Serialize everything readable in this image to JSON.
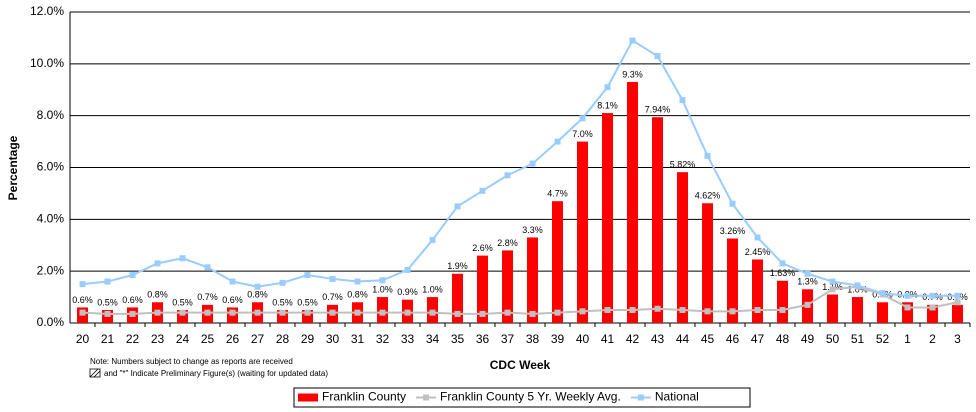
{
  "chart_data": {
    "type": "bar",
    "y_label": "Percentage",
    "x_label": "CDC Week",
    "notes": [
      "Note: Numbers subject to change as reports are received",
      "and \"*\" Indicate Preliminary Figure(s) (waiting for updated data)"
    ],
    "categories": [
      "20",
      "21",
      "22",
      "23",
      "24",
      "25",
      "26",
      "27",
      "28",
      "29",
      "30",
      "31",
      "32",
      "33",
      "34",
      "35",
      "36",
      "37",
      "38",
      "39",
      "40",
      "41",
      "42",
      "43",
      "44",
      "45",
      "46",
      "47",
      "48",
      "49",
      "50",
      "51",
      "52",
      "1",
      "2",
      "3"
    ],
    "series": [
      {
        "name": "Franklin County",
        "type": "bar",
        "color": "#ff0000",
        "values": [
          0.6,
          0.5,
          0.6,
          0.8,
          0.5,
          0.7,
          0.6,
          0.8,
          0.5,
          0.5,
          0.7,
          0.8,
          1.0,
          0.9,
          1.0,
          1.9,
          2.6,
          2.8,
          3.3,
          4.7,
          7.0,
          8.1,
          9.3,
          7.94,
          5.82,
          4.62,
          3.26,
          2.45,
          1.63,
          1.3,
          1.1,
          1.0,
          0.8,
          0.8,
          0.7,
          0.7
        ],
        "value_labels": [
          "0.6%",
          "0.5%",
          "0.6%",
          "0.8%",
          "0.5%",
          "0.7%",
          "0.6%",
          "0.8%",
          "0.5%",
          "0.5%",
          "0.7%",
          "0.8%",
          "1.0%",
          "0.9%",
          "1.0%",
          "1.9%",
          "2.6%",
          "2.8%",
          "3.3%",
          "4.7%",
          "7.0%",
          "8.1%",
          "9.3%",
          "7.94%",
          "5.82%",
          "4.62%",
          "3.26%",
          "2.45%",
          "1.63%",
          "1.3%",
          "1.1%",
          "1.0%",
          "0.8%",
          "0.8%",
          "0.7%",
          "0.7%"
        ]
      },
      {
        "name": "Franklin County 5 Yr. Weekly Avg.",
        "type": "line",
        "color": "#c0c0c0",
        "values": [
          0.4,
          0.35,
          0.35,
          0.4,
          0.4,
          0.4,
          0.4,
          0.4,
          0.4,
          0.4,
          0.4,
          0.4,
          0.4,
          0.4,
          0.4,
          0.35,
          0.35,
          0.4,
          0.35,
          0.4,
          0.45,
          0.5,
          0.5,
          0.55,
          0.5,
          0.45,
          0.45,
          0.5,
          0.5,
          0.7,
          1.3,
          1.4,
          1.1,
          0.6,
          0.6,
          0.8
        ]
      },
      {
        "name": "National",
        "type": "line",
        "color": "#99ccff",
        "values": [
          1.5,
          1.6,
          1.85,
          2.3,
          2.5,
          2.15,
          1.6,
          1.4,
          1.55,
          1.85,
          1.7,
          1.6,
          1.65,
          2.05,
          3.2,
          4.5,
          5.1,
          5.7,
          6.15,
          7.0,
          7.9,
          9.1,
          10.9,
          10.3,
          8.6,
          6.45,
          4.6,
          3.3,
          2.3,
          1.9,
          1.6,
          1.45,
          1.15,
          1.05,
          1.05,
          1.05
        ]
      }
    ],
    "ylim": [
      0,
      12
    ],
    "yticks": [
      {
        "value": 0,
        "label": "0.0%"
      },
      {
        "value": 2,
        "label": "2.0%"
      },
      {
        "value": 4,
        "label": "4.0%"
      },
      {
        "value": 6,
        "label": "6.0%"
      },
      {
        "value": 8,
        "label": "8.0%"
      },
      {
        "value": 10,
        "label": "10.0%"
      },
      {
        "value": 12,
        "label": "12.0%"
      }
    ],
    "grid": true
  }
}
